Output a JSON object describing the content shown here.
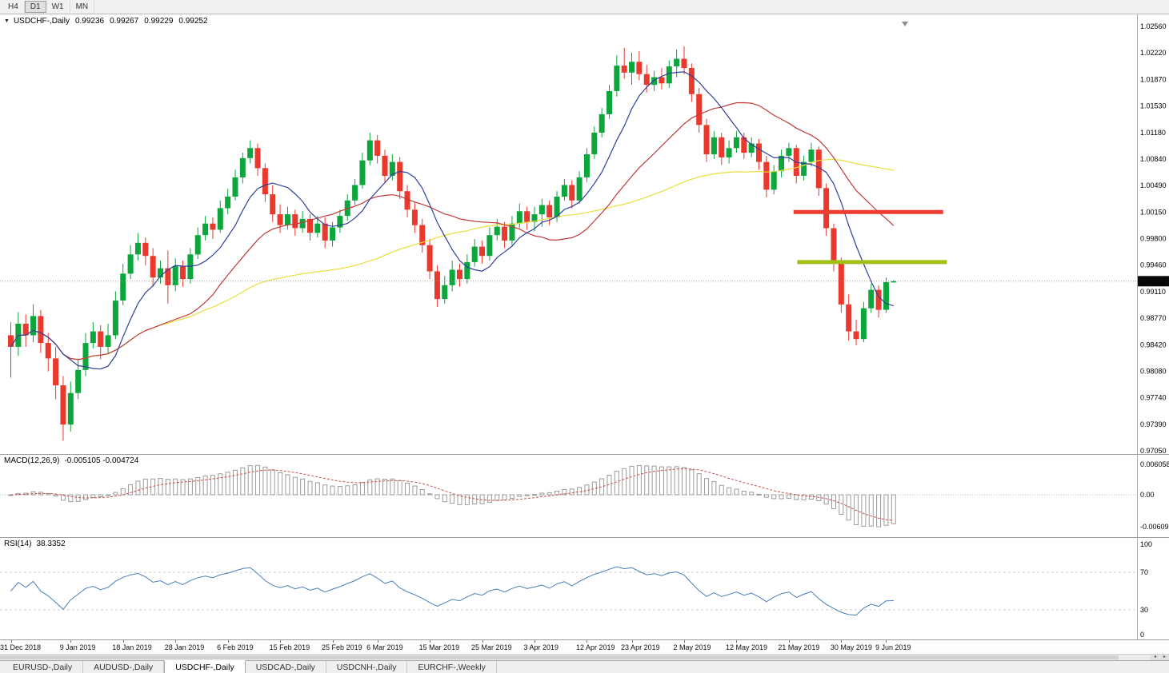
{
  "toolbar": {
    "timeframes": [
      "H4",
      "D1",
      "W1",
      "MN"
    ],
    "active_timeframe": "D1"
  },
  "chart_header": {
    "dropdown_icon": "▼",
    "symbol_label": "USDCHF-,Daily",
    "open": "0.99236",
    "high": "0.99267",
    "low": "0.99229",
    "close": "0.99252"
  },
  "price_scale": {
    "labels": [
      "1.02560",
      "1.02220",
      "1.01870",
      "1.01530",
      "1.01180",
      "1.00840",
      "1.00490",
      "1.00150",
      "0.99800",
      "0.99460",
      "0.99110",
      "0.98770",
      "0.98420",
      "0.98080",
      "0.97740",
      "0.97390",
      "0.97050"
    ],
    "current_price_tag": "0.99252"
  },
  "indicators": {
    "macd": {
      "label": "MACD(12,26,9)",
      "values": "-0.005105 -0.004724",
      "scale_labels": [
        "0.006058",
        "0.00",
        "-0.006096"
      ],
      "signal_color": "#c94f4f",
      "histogram_color": "#9b9b9b"
    },
    "rsi": {
      "label": "RSI(14)",
      "value": "38.3352",
      "scale_labels": [
        "100",
        "70",
        "30",
        "0"
      ],
      "levels": [
        70,
        30
      ],
      "line_color": "#4a7ebb"
    }
  },
  "tabs": {
    "items": [
      "EURUSD-,Daily",
      "AUDUSD-,Daily",
      "USDCHF-,Daily",
      "USDCAD-,Daily",
      "USDCNH-,Daily",
      "EURCHF-,Weekly"
    ],
    "active_index": 2
  },
  "scrollbar": {
    "left_arrow": "◂",
    "right_arrow": "▸"
  },
  "chart_data": {
    "type": "candlestick",
    "title": "USDCHF-,Daily",
    "ylim": [
      0.9705,
      1.0256
    ],
    "current_price": 0.99252,
    "colors": {
      "bull": "#0ca63c",
      "bear": "#e8392c"
    },
    "moving_averages": [
      {
        "period": 8,
        "color": "#2f3f9e"
      },
      {
        "period": 21,
        "color": "#c03a3a"
      },
      {
        "period": 50,
        "color": "#e8de3c"
      }
    ],
    "hlines": [
      {
        "name": "resistance",
        "price": 1.0015,
        "from_index": 105,
        "to_index": 125,
        "color": "#ef3b30",
        "width": 5
      },
      {
        "name": "support",
        "price": 0.995,
        "from_index": 105.5,
        "to_index": 125.5,
        "color": "#9fc117",
        "width": 5
      }
    ],
    "date_ticks": [
      [
        0,
        "31 Dec 2018"
      ],
      [
        8,
        "9 Jan 2019"
      ],
      [
        15,
        "18 Jan 2019"
      ],
      [
        22,
        "28 Jan 2019"
      ],
      [
        29,
        "6 Feb 2019"
      ],
      [
        36,
        "15 Feb 2019"
      ],
      [
        43,
        "25 Feb 2019"
      ],
      [
        49,
        "6 Mar 2019"
      ],
      [
        56,
        "15 Mar 2019"
      ],
      [
        63,
        "25 Mar 2019"
      ],
      [
        70,
        "3 Apr 2019"
      ],
      [
        77,
        "12 Apr 2019"
      ],
      [
        83,
        "23 Apr 2019"
      ],
      [
        90,
        "2 May 2019"
      ],
      [
        97,
        "12 May 2019"
      ],
      [
        104,
        "21 May 2019"
      ],
      [
        111,
        "30 May 2019"
      ],
      [
        117,
        "9 Jun 2019"
      ]
    ],
    "sub_charts": [
      {
        "type": "macd",
        "params": [
          12,
          26,
          9
        ]
      },
      {
        "type": "rsi",
        "params": [
          14
        ],
        "ylim": [
          0,
          100
        ]
      }
    ],
    "ohlc": [
      [
        0.9855,
        0.9872,
        0.98,
        0.984
      ],
      [
        0.984,
        0.9885,
        0.9828,
        0.987
      ],
      [
        0.987,
        0.9882,
        0.984,
        0.9855
      ],
      [
        0.9855,
        0.9895,
        0.9846,
        0.988
      ],
      [
        0.988,
        0.9888,
        0.9832,
        0.9845
      ],
      [
        0.9845,
        0.9858,
        0.9808,
        0.9825
      ],
      [
        0.9825,
        0.984,
        0.9772,
        0.979
      ],
      [
        0.979,
        0.9802,
        0.9718,
        0.9739
      ],
      [
        0.9739,
        0.9795,
        0.973,
        0.978
      ],
      [
        0.978,
        0.9825,
        0.9772,
        0.981
      ],
      [
        0.981,
        0.9858,
        0.9802,
        0.9845
      ],
      [
        0.9845,
        0.9872,
        0.9838,
        0.986
      ],
      [
        0.986,
        0.9868,
        0.9824,
        0.984
      ],
      [
        0.984,
        0.987,
        0.983,
        0.9855
      ],
      [
        0.9855,
        0.9912,
        0.985,
        0.99
      ],
      [
        0.99,
        0.9948,
        0.9894,
        0.9935
      ],
      [
        0.9935,
        0.9972,
        0.9928,
        0.996
      ],
      [
        0.996,
        0.9988,
        0.9952,
        0.9975
      ],
      [
        0.9975,
        0.9982,
        0.9946,
        0.9958
      ],
      [
        0.9958,
        0.9968,
        0.9918,
        0.993
      ],
      [
        0.993,
        0.9952,
        0.9922,
        0.9942
      ],
      [
        0.9942,
        0.9965,
        0.9896,
        0.992
      ],
      [
        0.992,
        0.9955,
        0.9912,
        0.9945
      ],
      [
        0.9945,
        0.9952,
        0.9918,
        0.9928
      ],
      [
        0.9928,
        0.9968,
        0.9922,
        0.996
      ],
      [
        0.996,
        0.9995,
        0.9954,
        0.9985
      ],
      [
        0.9985,
        1.001,
        0.9978,
        1.0
      ],
      [
        1.0,
        1.0008,
        0.998,
        0.9992
      ],
      [
        0.9992,
        1.003,
        0.9988,
        1.002
      ],
      [
        1.002,
        1.0045,
        1.0012,
        1.0035
      ],
      [
        1.0035,
        1.007,
        1.003,
        1.006
      ],
      [
        1.006,
        1.0092,
        1.0052,
        1.0085
      ],
      [
        1.0085,
        1.0108,
        1.0078,
        1.0098
      ],
      [
        1.0098,
        1.0104,
        1.0062,
        1.0072
      ],
      [
        1.0072,
        1.0078,
        1.0028,
        1.0038
      ],
      [
        1.0038,
        1.005,
        1.0002,
        1.0012
      ],
      [
        1.0012,
        1.0025,
        0.9988,
        0.9998
      ],
      [
        0.9998,
        1.0022,
        0.9992,
        1.0012
      ],
      [
        1.0012,
        1.0018,
        0.9984,
        0.9994
      ],
      [
        0.9994,
        1.0016,
        0.9988,
        1.0006
      ],
      [
        1.0006,
        1.0012,
        0.9978,
        0.9988
      ],
      [
        0.9988,
        1.001,
        0.9982,
        1.0
      ],
      [
        1.0,
        1.0008,
        0.9968,
        0.9978
      ],
      [
        0.9978,
        1.0002,
        0.997,
        0.9995
      ],
      [
        0.9995,
        1.0018,
        0.9988,
        1.001
      ],
      [
        1.001,
        1.0038,
        1.0004,
        1.003
      ],
      [
        1.003,
        1.0058,
        1.0024,
        1.005
      ],
      [
        1.005,
        1.0092,
        1.0045,
        1.0082
      ],
      [
        1.0082,
        1.0118,
        1.0076,
        1.0108
      ],
      [
        1.0108,
        1.0115,
        1.0078,
        1.0088
      ],
      [
        1.0088,
        1.0096,
        1.0052,
        1.0062
      ],
      [
        1.0062,
        1.009,
        1.0056,
        1.008
      ],
      [
        1.008,
        1.0086,
        1.0032,
        1.0042
      ],
      [
        1.0042,
        1.005,
        1.0008,
        1.0018
      ],
      [
        1.0018,
        1.0028,
        0.9988,
        0.9998
      ],
      [
        0.9998,
        1.0006,
        0.9962,
        0.9972
      ],
      [
        0.9972,
        0.998,
        0.9928,
        0.9938
      ],
      [
        0.9938,
        0.9946,
        0.9892,
        0.9902
      ],
      [
        0.9902,
        0.9932,
        0.9896,
        0.992
      ],
      [
        0.992,
        0.9952,
        0.9912,
        0.994
      ],
      [
        0.994,
        0.9948,
        0.9918,
        0.9928
      ],
      [
        0.9928,
        0.996,
        0.9922,
        0.995
      ],
      [
        0.995,
        0.998,
        0.9944,
        0.997
      ],
      [
        0.997,
        0.9978,
        0.9948,
        0.9958
      ],
      [
        0.9958,
        0.9995,
        0.9952,
        0.9985
      ],
      [
        0.9985,
        1.0006,
        0.9978,
        0.9996
      ],
      [
        0.9996,
        1.0002,
        0.9968,
        0.9978
      ],
      [
        0.9978,
        1.001,
        0.9972,
        1.0
      ],
      [
        1.0,
        1.0026,
        0.9994,
        1.0016
      ],
      [
        1.0016,
        1.0022,
        0.9992,
        1.0002
      ],
      [
        1.0002,
        1.0022,
        0.999,
        1.0012
      ],
      [
        1.0012,
        1.0032,
        0.9996,
        1.0024
      ],
      [
        1.0024,
        1.003,
        0.9998,
        1.0008
      ],
      [
        1.0008,
        1.0042,
        1.0002,
        1.0035
      ],
      [
        1.0035,
        1.0058,
        1.003,
        1.005
      ],
      [
        1.005,
        1.0056,
        1.002,
        1.003
      ],
      [
        1.003,
        1.0068,
        1.0026,
        1.006
      ],
      [
        1.006,
        1.0098,
        1.0054,
        1.009
      ],
      [
        1.009,
        1.0126,
        1.0084,
        1.0118
      ],
      [
        1.0118,
        1.015,
        1.0112,
        1.0142
      ],
      [
        1.0142,
        1.018,
        1.0136,
        1.0172
      ],
      [
        1.0172,
        1.0218,
        1.0165,
        1.0205
      ],
      [
        1.0205,
        1.0228,
        1.0188,
        1.0196
      ],
      [
        1.0196,
        1.0222,
        1.018,
        1.021
      ],
      [
        1.021,
        1.0224,
        1.0186,
        1.0194
      ],
      [
        1.0194,
        1.0206,
        1.017,
        1.018
      ],
      [
        1.018,
        1.0198,
        1.0172,
        1.019
      ],
      [
        1.019,
        1.0202,
        1.0174,
        1.0182
      ],
      [
        1.0182,
        1.0212,
        1.0176,
        1.0204
      ],
      [
        1.0204,
        1.0226,
        1.019,
        1.0214
      ],
      [
        1.0214,
        1.023,
        1.0194,
        1.0202
      ],
      [
        1.0202,
        1.0208,
        1.0158,
        1.0168
      ],
      [
        1.0168,
        1.0176,
        1.0118,
        1.0128
      ],
      [
        1.0128,
        1.0136,
        1.008,
        1.009
      ],
      [
        1.009,
        1.012,
        1.0084,
        1.0112
      ],
      [
        1.0112,
        1.0118,
        1.0076,
        1.0086
      ],
      [
        1.0086,
        1.0108,
        1.0078,
        1.0098
      ],
      [
        1.0098,
        1.012,
        1.0092,
        1.0112
      ],
      [
        1.0112,
        1.0118,
        1.0084,
        1.0092
      ],
      [
        1.0092,
        1.0112,
        1.0086,
        1.0104
      ],
      [
        1.0104,
        1.011,
        1.007,
        1.008
      ],
      [
        1.008,
        1.0088,
        1.0034,
        1.0044
      ],
      [
        1.0044,
        1.0076,
        1.0038,
        1.0068
      ],
      [
        1.0068,
        1.0096,
        1.006,
        1.0088
      ],
      [
        1.0088,
        1.0105,
        1.008,
        1.0098
      ],
      [
        1.0098,
        1.0102,
        1.0052,
        1.0062
      ],
      [
        1.0062,
        1.0088,
        1.0056,
        1.008
      ],
      [
        1.008,
        1.0105,
        1.0074,
        1.0096
      ],
      [
        1.0096,
        1.01,
        1.0036,
        1.0046
      ],
      [
        1.0046,
        1.0052,
        0.9984,
        0.9994
      ],
      [
        0.9994,
        1.0,
        0.9938,
        0.9948
      ],
      [
        0.9948,
        0.9956,
        0.9884,
        0.9895
      ],
      [
        0.9895,
        0.9908,
        0.9848,
        0.986
      ],
      [
        0.986,
        0.9875,
        0.9842,
        0.985
      ],
      [
        0.985,
        0.9898,
        0.9846,
        0.989
      ],
      [
        0.989,
        0.9922,
        0.9884,
        0.9914
      ],
      [
        0.9914,
        0.992,
        0.9878,
        0.9888
      ],
      [
        0.9888,
        0.993,
        0.9884,
        0.9924
      ],
      [
        0.99236,
        0.99267,
        0.99229,
        0.99252
      ]
    ]
  }
}
